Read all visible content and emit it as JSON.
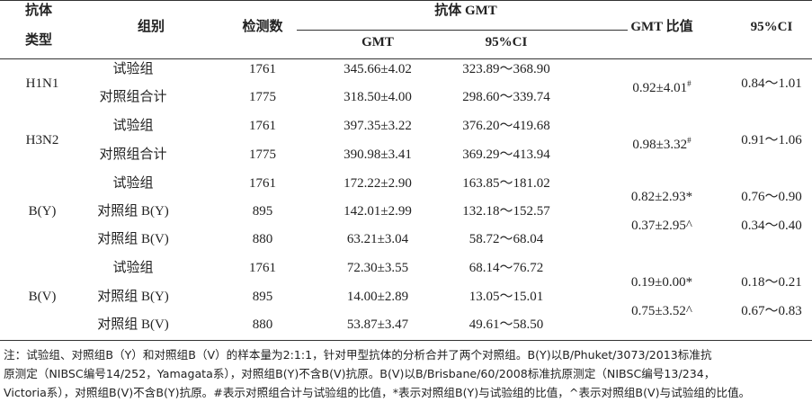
{
  "header": {
    "antibody": [
      "抗体",
      "类型"
    ],
    "group": "组别",
    "count": "检测数",
    "gmt_group": "抗体 GMT",
    "gmt": "GMT",
    "ci": "95%CI",
    "ratio": "GMT 比值",
    "ratio_ci": "95%CI"
  },
  "table": {
    "groups": [
      {
        "name": "H1N1",
        "rows": [
          [
            "试验组",
            "1761",
            "345.66±4.02",
            "323.89～368.90"
          ],
          [
            "对照组合计",
            "1775",
            "318.50±4.00",
            "298.60～339.74"
          ]
        ],
        "ratios": [
          {
            "ratio": "0.92±4.01",
            "sup": "#",
            "ci": "0.84～1.01"
          }
        ]
      },
      {
        "name": "H3N2",
        "rows": [
          [
            "试验组",
            "1761",
            "397.35±3.22",
            "376.20～419.68"
          ],
          [
            "对照组合计",
            "1775",
            "390.98±3.41",
            "369.29～413.94"
          ]
        ],
        "ratios": [
          {
            "ratio": "0.98±3.32",
            "sup": "#",
            "ci": "0.91～1.06"
          }
        ]
      },
      {
        "name": "B(Y)",
        "rows": [
          [
            "试验组",
            "1761",
            "172.22±2.90",
            "163.85～181.02"
          ],
          [
            "对照组 B(Y)",
            "895",
            "142.01±2.99",
            "132.18～152.57"
          ],
          [
            "对照组 B(V)",
            "880",
            "63.21±3.04",
            "58.72～68.04"
          ]
        ],
        "ratios": [
          {
            "ratio": "0.82±2.93*",
            "ci": "0.76～0.90"
          },
          {
            "ratio": "0.37±2.95^",
            "ci": "0.34～0.40"
          }
        ]
      },
      {
        "name": "B(V)",
        "rows": [
          [
            "试验组",
            "1761",
            "72.30±3.55",
            "68.14～76.72"
          ],
          [
            "对照组 B(Y)",
            "895",
            "14.00±2.89",
            "13.05～15.01"
          ],
          [
            "对照组 B(V)",
            "880",
            "53.87±3.47",
            "49.61～58.50"
          ]
        ],
        "ratios": [
          {
            "ratio": "0.19±0.00*",
            "ci": "0.18～0.21"
          },
          {
            "ratio": "0.75±3.52^",
            "ci": "0.67～0.83"
          }
        ]
      }
    ]
  },
  "note": [
    "注：试验组、对照组B（Y）和对照组B（V）的样本量为2:1:1，针对甲型抗体的分析合并了两个对照组。B(Y)以B/Phuket/3073/2013标准抗",
    "原测定（NIBSC编号14/252，Yamagata系），对照组B(Y)不含B(V)抗原。B(V)以B/Brisbane/60/2008标准抗原测定（NIBSC编号13/234，",
    "Victoria系），对照组B(V)不含B(Y)抗原。#表示对照组合计与试验组的比值，*表示对照组B(Y)与试验组的比值，^表示对照组B(V)与试验组的比值。"
  ]
}
